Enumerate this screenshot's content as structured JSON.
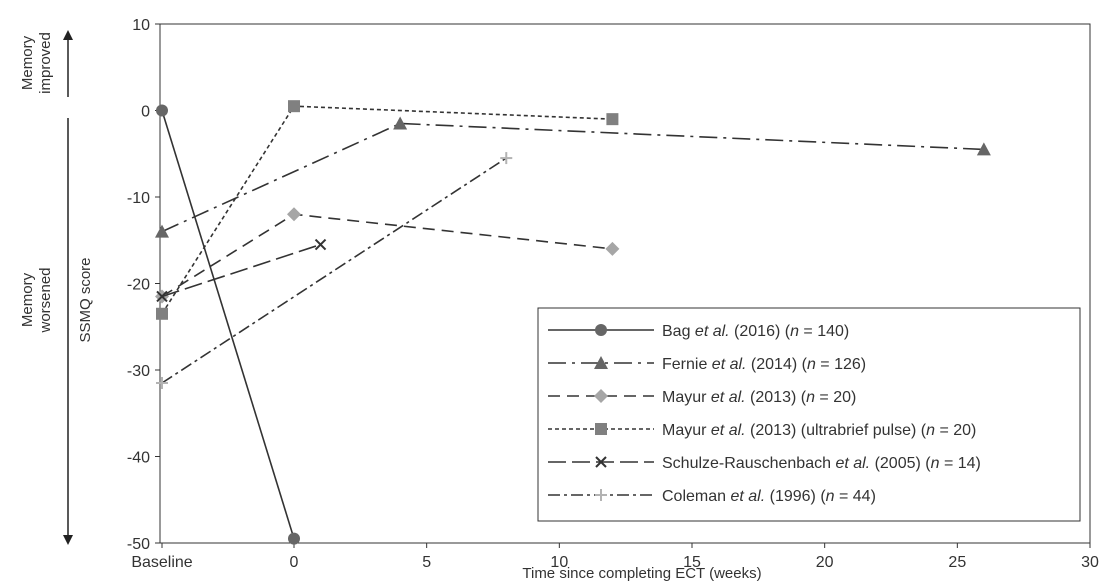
{
  "chart_data": {
    "type": "line",
    "title": "",
    "xlabel": "Time since completing ECT (weeks)",
    "ylabel": "SSMQ score",
    "x_tick_labels": [
      "Baseline",
      "0",
      "5",
      "10",
      "15",
      "20",
      "25",
      "30"
    ],
    "x_tick_values": [
      "Baseline",
      0,
      5,
      10,
      15,
      20,
      25,
      30
    ],
    "xlim": [
      0,
      30
    ],
    "ylim": [
      -50,
      10
    ],
    "y_ticks": [
      10,
      0,
      -10,
      -20,
      -30,
      -40,
      -50
    ],
    "y_tick_labels": [
      "10",
      "0",
      "-10",
      "-20",
      "-30",
      "-40",
      "-50"
    ],
    "annotations": {
      "improved": [
        "Memory",
        "improved"
      ],
      "worsened": [
        "Memory",
        "worsened"
      ]
    },
    "legend_position": "lower-right",
    "series": [
      {
        "name": "Bag et al. (2016) (n = 140)",
        "author": "Bag",
        "rest": " (2016) (",
        "n": "140",
        "marker": "circle",
        "dash": "",
        "color": "#666666",
        "points": [
          [
            "Baseline",
            0
          ],
          [
            0,
            -49.5
          ]
        ]
      },
      {
        "name": "Fernie et al. (2014) (n = 126)",
        "author": "Fernie",
        "rest": " (2014) (",
        "n": "126",
        "marker": "triangle",
        "dash": "18,6,3,6",
        "color": "#666666",
        "points": [
          [
            "Baseline",
            -14
          ],
          [
            4,
            -1.5
          ],
          [
            26,
            -4.5
          ]
        ]
      },
      {
        "name": "Mayur et al. (2013) (n = 20)",
        "author": "Mayur",
        "rest": " (2013) (",
        "n": "20",
        "marker": "diamond",
        "dash": "12,7",
        "color": "#a6a6a6",
        "points": [
          [
            "Baseline",
            -21.5
          ],
          [
            0,
            -12
          ],
          [
            12,
            -16
          ]
        ]
      },
      {
        "name": "Mayur et al. (2013) (ultrabrief pulse) (n = 20)",
        "author": "Mayur",
        "rest": " (2013) (ultrabrief pulse) (",
        "n": "20",
        "marker": "square",
        "dash": "4,3",
        "color": "#808080",
        "points": [
          [
            "Baseline",
            -23.5
          ],
          [
            0,
            0.5
          ],
          [
            12,
            -1
          ]
        ]
      },
      {
        "name": "Schulze-Rauschenbach et al. (2005) (n = 14)",
        "author": "Schulze-Rauschenbach",
        "rest": " (2005) (",
        "n": "14",
        "marker": "x",
        "dash": "18,6",
        "color": "#333333",
        "points": [
          [
            "Baseline",
            -21.5
          ],
          [
            1,
            -15.5
          ]
        ]
      },
      {
        "name": "Coleman et al. (1996) (n = 44)",
        "author": "Coleman",
        "rest": " (1996) (",
        "n": "44",
        "marker": "plus",
        "dash": "12,4,3,4",
        "color": "#b3b3b3",
        "points": [
          [
            "Baseline",
            -31.5
          ],
          [
            8,
            -5.5
          ]
        ]
      }
    ]
  }
}
